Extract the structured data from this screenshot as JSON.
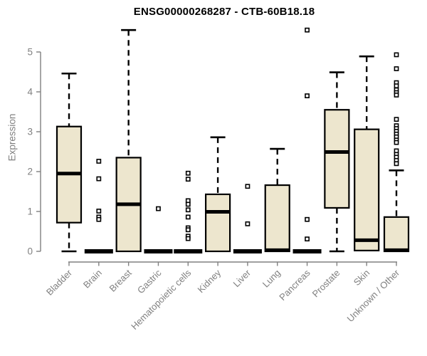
{
  "colors": {
    "box_fill": "#EDE6CE",
    "box_stroke": "#000000",
    "median": "#000000",
    "axis": "#808080",
    "tick_label": "#808080",
    "title": "#000000",
    "outlier_fill": "#ffffff"
  },
  "chart_data": {
    "type": "boxplot",
    "title": "ENSG00000268287 - CTB-60B18.18",
    "ylabel": "Expression",
    "ylim": [
      0,
      5
    ],
    "yticks": [
      0,
      1,
      2,
      3,
      4,
      5
    ],
    "grid": false,
    "categories": [
      "Bladder",
      "Brain",
      "Breast",
      "Gastric",
      "Hematopoietic cells",
      "Kidney",
      "Liver",
      "Lung",
      "Pancreas",
      "Prostate",
      "Skin",
      "Unknown / Other"
    ],
    "series": [
      {
        "category": "Bladder",
        "whisker_low": 0,
        "q1": 0.72,
        "median": 1.95,
        "q3": 3.13,
        "whisker_high": 4.46,
        "outliers": []
      },
      {
        "category": "Brain",
        "whisker_low": 0,
        "q1": 0,
        "median": 0,
        "q3": 0,
        "whisker_high": 0,
        "outliers": [
          2.26,
          1.82,
          1.01,
          0.86,
          0.8
        ]
      },
      {
        "category": "Breast",
        "whisker_low": 0,
        "q1": 0,
        "median": 1.18,
        "q3": 2.35,
        "whisker_high": 5.55,
        "outliers": []
      },
      {
        "category": "Gastric",
        "whisker_low": 0,
        "q1": 0,
        "median": 0,
        "q3": 0,
        "whisker_high": 0,
        "outliers": [
          1.07
        ]
      },
      {
        "category": "Hematopoietic cells",
        "whisker_low": 0,
        "q1": 0,
        "median": 0,
        "q3": 0,
        "whisker_high": 0,
        "outliers": [
          1.96,
          1.81,
          1.27,
          1.18,
          1.04,
          0.86,
          0.59,
          0.54,
          0.38,
          0.32
        ]
      },
      {
        "category": "Kidney",
        "whisker_low": 0,
        "q1": 0,
        "median": 0.99,
        "q3": 1.43,
        "whisker_high": 2.86,
        "outliers": []
      },
      {
        "category": "Liver",
        "whisker_low": 0,
        "q1": 0,
        "median": 0,
        "q3": 0,
        "whisker_high": 0,
        "outliers": [
          1.63,
          0.69
        ]
      },
      {
        "category": "Lung",
        "whisker_low": 0,
        "q1": 0,
        "median": 0.03,
        "q3": 1.66,
        "whisker_high": 2.57,
        "outliers": []
      },
      {
        "category": "Pancreas",
        "whisker_low": 0,
        "q1": 0,
        "median": 0,
        "q3": 0,
        "whisker_high": 0,
        "outliers": [
          5.55,
          3.9,
          0.8,
          0.31
        ]
      },
      {
        "category": "Prostate",
        "whisker_low": 0,
        "q1": 1.09,
        "median": 2.49,
        "q3": 3.55,
        "whisker_high": 4.49,
        "outliers": []
      },
      {
        "category": "Skin",
        "whisker_low": 0.02,
        "q1": 0.02,
        "median": 0.28,
        "q3": 3.06,
        "whisker_high": 4.89,
        "outliers": []
      },
      {
        "category": "Unknown / Other",
        "whisker_low": 0,
        "q1": 0,
        "median": 0.03,
        "q3": 0.86,
        "whisker_high": 2.03,
        "outliers": [
          4.93,
          4.58,
          4.23,
          4.15,
          4.05,
          3.98,
          3.92,
          3.31,
          3.15,
          3.08,
          3.01,
          2.94,
          2.87,
          2.79,
          2.73,
          2.52,
          2.43,
          2.36,
          2.28,
          2.2
        ]
      }
    ]
  }
}
